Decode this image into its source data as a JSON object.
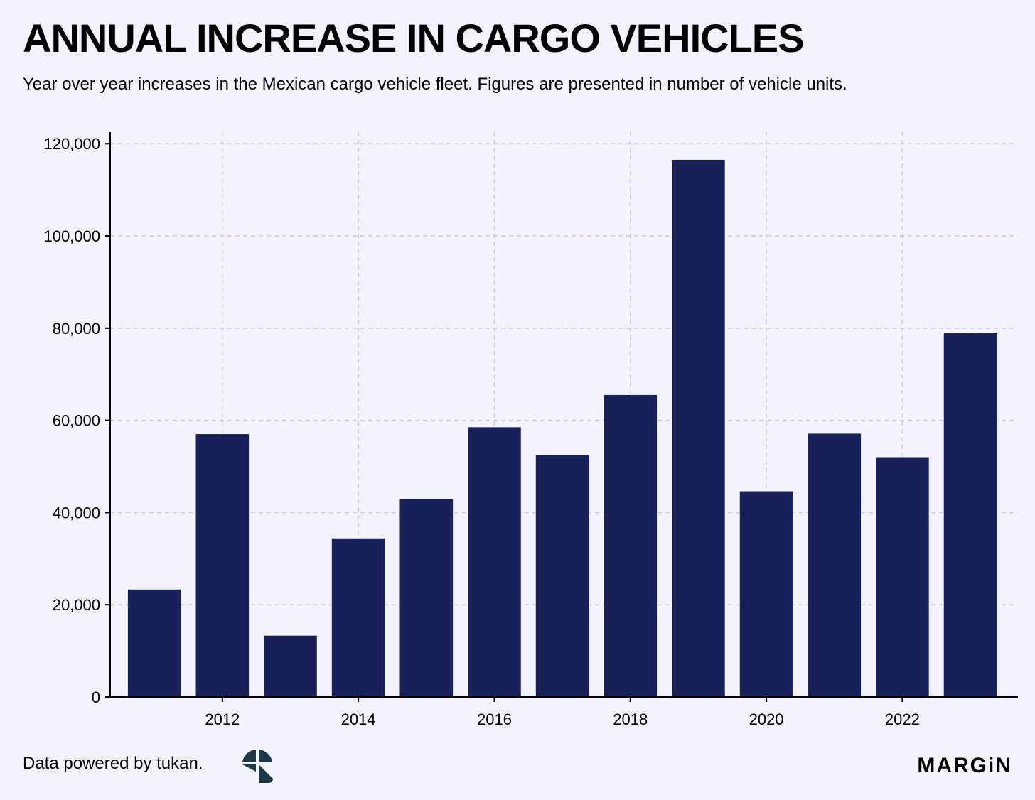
{
  "header": {
    "title": "ANNUAL INCREASE IN CARGO VEHICLES",
    "subtitle": "Year over year increases in the Mexican cargo vehicle fleet. Figures are presented in number of vehicle units."
  },
  "footer": {
    "source_text": "Data powered by tukan.",
    "source_logo": "tukan-logo-icon",
    "brand": "MARGiN"
  },
  "colors": {
    "background": "#f3f3fd",
    "bar": "#18205a",
    "grid": "#c8c8f8",
    "axis": "#000000"
  },
  "chart_data": {
    "type": "bar",
    "title": "",
    "xlabel": "",
    "ylabel": "",
    "x": [
      2011,
      2012,
      2013,
      2014,
      2015,
      2016,
      2017,
      2018,
      2019,
      2020,
      2021,
      2022,
      2023
    ],
    "values": [
      23300,
      57000,
      13300,
      34400,
      42900,
      58500,
      52500,
      65500,
      116500,
      44600,
      57100,
      52000,
      78900
    ],
    "xticks": [
      2012,
      2014,
      2016,
      2018,
      2020,
      2022
    ],
    "xtick_labels": [
      "2012",
      "2014",
      "2016",
      "2018",
      "2020",
      "2022"
    ],
    "yticks": [
      0,
      20000,
      40000,
      60000,
      80000,
      100000,
      120000
    ],
    "ytick_labels": [
      "0",
      "20,000",
      "40,000",
      "60,000",
      "80,000",
      "100,000",
      "120,000"
    ],
    "xlim": [
      2010.35,
      2023.7
    ],
    "ylim": [
      0,
      122500
    ],
    "grid": true,
    "legend": "none"
  }
}
